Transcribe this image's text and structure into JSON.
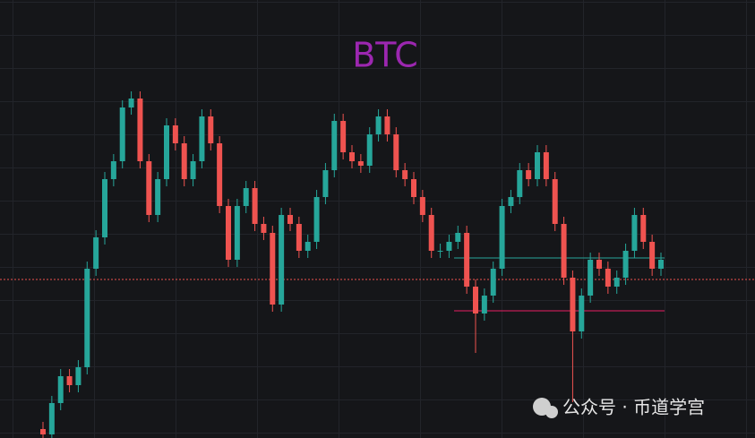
{
  "chart_data": {
    "type": "candlestick",
    "title": "BTC",
    "title_color": "#9c27b0",
    "up_color": "#26a69a",
    "down_color": "#ef5350",
    "ylim": [
      0,
      489
    ],
    "open": [
      10,
      4,
      39,
      69,
      59,
      79,
      189,
      224,
      289,
      309,
      369,
      379,
      309,
      249,
      289,
      349,
      329,
      289,
      309,
      359,
      329,
      259,
      199,
      259,
      279,
      239,
      229,
      149,
      249,
      239,
      209,
      219,
      269,
      299,
      354,
      319,
      309,
      304,
      339,
      359,
      339,
      299,
      289,
      269,
      249,
      209,
      209,
      219,
      229,
      169,
      139,
      159,
      189,
      259,
      269,
      299,
      289,
      319,
      289,
      239,
      179,
      119,
      159,
      199,
      189,
      169,
      179,
      209,
      249,
      219,
      189
    ],
    "high": [
      18,
      47,
      77,
      77,
      87,
      197,
      232,
      297,
      317,
      377,
      387,
      387,
      317,
      297,
      357,
      357,
      337,
      317,
      367,
      367,
      337,
      267,
      267,
      287,
      287,
      247,
      237,
      257,
      257,
      247,
      227,
      277,
      307,
      362,
      362,
      327,
      317,
      347,
      367,
      367,
      347,
      307,
      297,
      277,
      257,
      217,
      227,
      237,
      237,
      177,
      167,
      197,
      267,
      277,
      307,
      307,
      327,
      327,
      297,
      247,
      187,
      167,
      207,
      207,
      197,
      187,
      217,
      257,
      257,
      227,
      207
    ],
    "low": [
      0,
      0,
      31,
      51,
      51,
      71,
      181,
      216,
      281,
      301,
      361,
      301,
      241,
      241,
      281,
      321,
      281,
      281,
      301,
      321,
      251,
      191,
      191,
      251,
      231,
      221,
      141,
      141,
      231,
      201,
      201,
      211,
      261,
      291,
      311,
      301,
      296,
      296,
      331,
      331,
      291,
      281,
      261,
      241,
      201,
      201,
      201,
      211,
      161,
      95,
      131,
      151,
      181,
      251,
      261,
      281,
      281,
      281,
      231,
      171,
      40,
      111,
      151,
      181,
      161,
      161,
      171,
      201,
      211,
      181,
      181
    ],
    "close": [
      4,
      39,
      69,
      59,
      79,
      189,
      224,
      289,
      309,
      369,
      379,
      309,
      249,
      289,
      349,
      329,
      289,
      309,
      359,
      329,
      259,
      199,
      259,
      279,
      239,
      229,
      149,
      249,
      239,
      209,
      219,
      269,
      299,
      354,
      319,
      309,
      304,
      339,
      359,
      339,
      299,
      289,
      269,
      249,
      209,
      209,
      219,
      229,
      169,
      139,
      159,
      189,
      259,
      269,
      299,
      289,
      319,
      289,
      239,
      179,
      119,
      159,
      199,
      189,
      169,
      179,
      209,
      249,
      219,
      189,
      199
    ],
    "levels": [
      {
        "value": 201,
        "color": "#26a69a",
        "style": "solid"
      },
      {
        "value": 142,
        "color": "#e91e63",
        "style": "solid"
      },
      {
        "value": 177,
        "color": "#ef5350",
        "style": "dotted"
      }
    ],
    "watermark": "公众号 · 币道学宫"
  }
}
